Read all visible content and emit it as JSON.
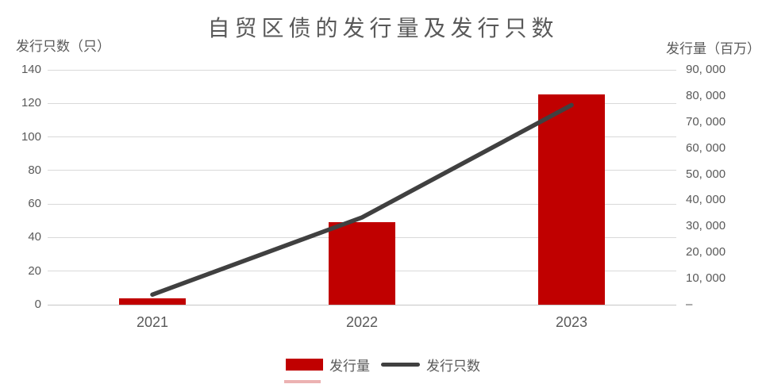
{
  "title": "自贸区债的发行量及发行只数",
  "colors": {
    "bar": "#c00000",
    "line": "#404040",
    "gridline": "#d9d9d9",
    "axis_line": "#c6c6c6",
    "text": "#595959"
  },
  "legend": {
    "items": [
      {
        "label": "发行量",
        "swatch": "bar"
      },
      {
        "label": "发行只数",
        "swatch": "line"
      }
    ]
  },
  "chart_data": {
    "type": "bar+line",
    "title": "自贸区债的发行量及发行只数",
    "categories": [
      "2021",
      "2022",
      "2023"
    ],
    "series": [
      {
        "name": "发行量",
        "type": "bar",
        "axis": "right",
        "color": "#c00000",
        "values": [
          2300,
          31500,
          80500
        ]
      },
      {
        "name": "发行只数",
        "type": "line",
        "axis": "left",
        "color": "#404040",
        "values": [
          6,
          52,
          119
        ]
      }
    ],
    "left_axis": {
      "header": "发行只数（只）",
      "min": 0,
      "max": 140,
      "tick_labels": [
        "140",
        "120",
        "100",
        "80",
        "60",
        "40",
        "20",
        "0"
      ]
    },
    "right_axis": {
      "header": "发行量（百万）",
      "min": 0,
      "max": 90000,
      "tick_labels": [
        "90, 000",
        "80, 000",
        "70, 000",
        "60, 000",
        "50, 000",
        "40, 000",
        "30, 000",
        "20, 000",
        "10, 000",
        "–"
      ]
    },
    "grid": "horizontal",
    "legend_position": "bottom"
  }
}
